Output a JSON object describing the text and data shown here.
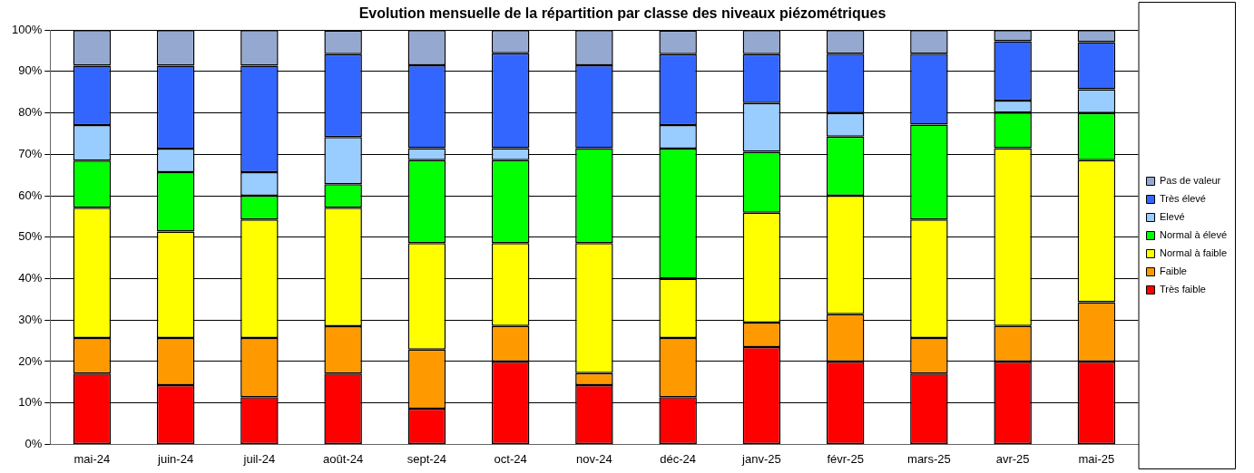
{
  "chart_data": {
    "type": "bar",
    "stacked": true,
    "title": "Evolution mensuelle de la répartition par classe des niveaux piézométriques",
    "categories": [
      "mai-24",
      "juin-24",
      "juil-24",
      "août-24",
      "sept-24",
      "oct-24",
      "nov-24",
      "déc-24",
      "janv-25",
      "févr-25",
      "mars-25",
      "avr-25",
      "mai-25"
    ],
    "series": [
      {
        "name": "Très faible",
        "color": "#ff0000",
        "values": [
          17.1,
          14.3,
          11.4,
          17.1,
          8.6,
          20,
          14.3,
          11.4,
          23.5,
          20,
          17.1,
          20,
          20
        ]
      },
      {
        "name": "Faible",
        "color": "#ff9900",
        "values": [
          8.6,
          11.4,
          14.3,
          11.4,
          14.3,
          8.6,
          2.9,
          14.3,
          5.9,
          11.4,
          8.6,
          8.6,
          14.3
        ]
      },
      {
        "name": "Normal à faible",
        "color": "#ffff00",
        "values": [
          31.4,
          25.7,
          28.6,
          28.6,
          25.7,
          20,
          31.4,
          14.3,
          26.5,
          28.6,
          28.6,
          42.9,
          34.3
        ]
      },
      {
        "name": "Normal à élevé",
        "color": "#00ff00",
        "values": [
          11.4,
          14.3,
          5.7,
          5.7,
          20,
          20,
          22.9,
          31.4,
          14.7,
          14.3,
          22.9,
          8.6,
          11.4
        ]
      },
      {
        "name": "Elevé",
        "color": "#99ccff",
        "values": [
          8.6,
          5.7,
          5.7,
          11.4,
          2.9,
          2.9,
          0,
          5.7,
          11.8,
          5.7,
          0,
          2.9,
          5.7
        ]
      },
      {
        "name": "Très élevé",
        "color": "#3366ff",
        "values": [
          14.3,
          20,
          25.7,
          20,
          20,
          22.9,
          20,
          17.1,
          11.8,
          14.3,
          17.1,
          14.3,
          11.4
        ]
      },
      {
        "name": "Pas de valeur",
        "color": "#95a9d0",
        "values": [
          8.6,
          8.6,
          8.6,
          5.7,
          8.5,
          5.6,
          8.5,
          5.7,
          5.8,
          5.7,
          5.7,
          2.7,
          2.9
        ]
      }
    ],
    "ylim": [
      0,
      100
    ],
    "yticks": [
      {
        "value": 0,
        "label": "0%"
      },
      {
        "value": 10,
        "label": "10%"
      },
      {
        "value": 20,
        "label": "20%"
      },
      {
        "value": 30,
        "label": "30%"
      },
      {
        "value": 40,
        "label": "40%"
      },
      {
        "value": 50,
        "label": "50%"
      },
      {
        "value": 60,
        "label": "60%"
      },
      {
        "value": 70,
        "label": "70%"
      },
      {
        "value": 80,
        "label": "80%"
      },
      {
        "value": 90,
        "label": "90%"
      },
      {
        "value": 100,
        "label": "100%"
      }
    ],
    "grid": "y",
    "legend": "right"
  }
}
